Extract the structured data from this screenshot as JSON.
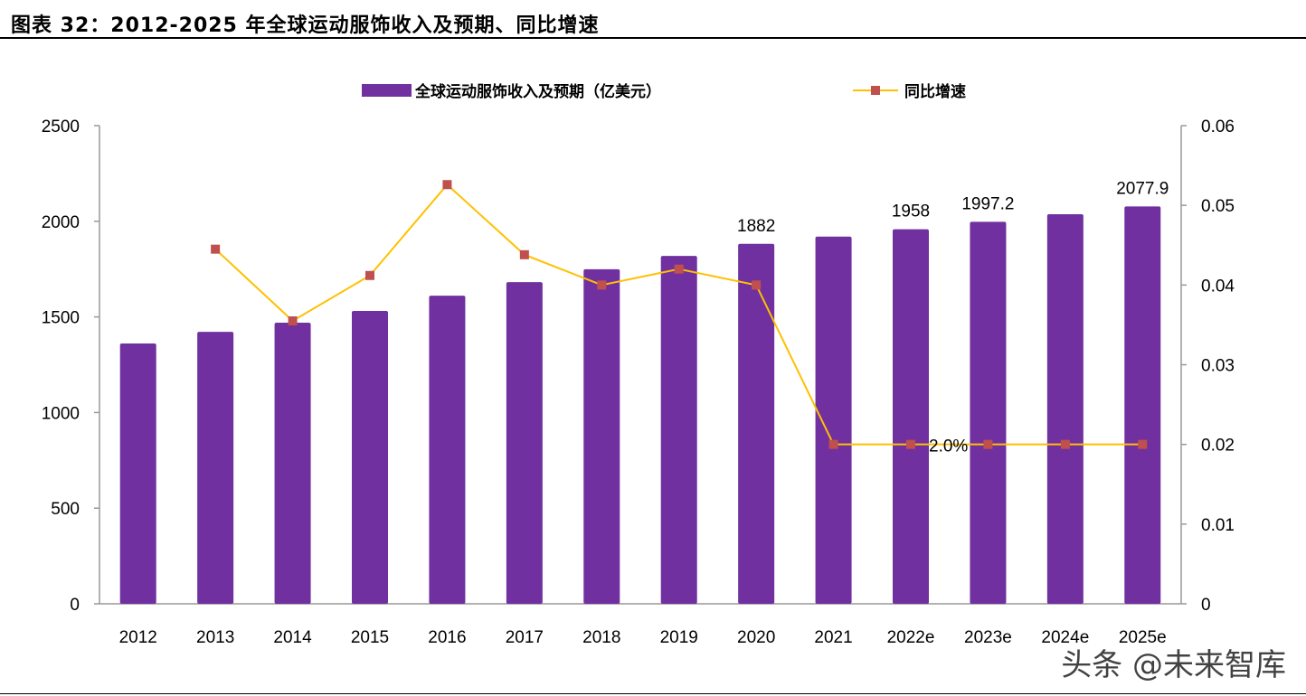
{
  "title": "图表 32：2012-2025 年全球运动服饰收入及预期、同比增速",
  "watermark": "头条 @未来智库",
  "chart_data": {
    "type": "bar+line",
    "categories": [
      "2012",
      "2013",
      "2014",
      "2015",
      "2016",
      "2017",
      "2018",
      "2019",
      "2020",
      "2021",
      "2022e",
      "2023e",
      "2024e",
      "2025e"
    ],
    "series": [
      {
        "name": "全球运动服饰收入及预期（亿美元）",
        "type": "bar",
        "axis": "left",
        "color": "#7030A0",
        "values": [
          1361,
          1422,
          1470,
          1531,
          1611,
          1682,
          1749,
          1819,
          1882,
          1920,
          1958,
          1997.2,
          2037.1,
          2077.9
        ]
      },
      {
        "name": "同比增速",
        "type": "line",
        "axis": "right",
        "color": "#FFC000",
        "marker_color": "#C0504D",
        "values": [
          null,
          0.0445,
          0.0355,
          0.0412,
          0.0526,
          0.0438,
          0.04,
          0.042,
          0.04,
          0.02,
          0.02,
          0.02,
          0.02,
          0.02
        ]
      }
    ],
    "data_labels": [
      {
        "category": "2020",
        "text": "1882",
        "series": 0
      },
      {
        "category": "2022e",
        "text": "1958",
        "series": 0
      },
      {
        "category": "2023e",
        "text": "1997.2",
        "series": 0
      },
      {
        "category": "2025e",
        "text": "2077.9",
        "series": 0
      },
      {
        "category": "2022e",
        "text": "2.0%",
        "series": 1
      }
    ],
    "y_left": {
      "lim": [
        0,
        2500
      ],
      "ticks": [
        "0",
        "500",
        "1000",
        "1500",
        "2000",
        "2500"
      ]
    },
    "y_right": {
      "lim": [
        0,
        0.06
      ],
      "ticks": [
        "0",
        "0.01",
        "0.02",
        "0.03",
        "0.04",
        "0.05",
        "0.06"
      ]
    },
    "legend_position": "top",
    "grid": false
  }
}
